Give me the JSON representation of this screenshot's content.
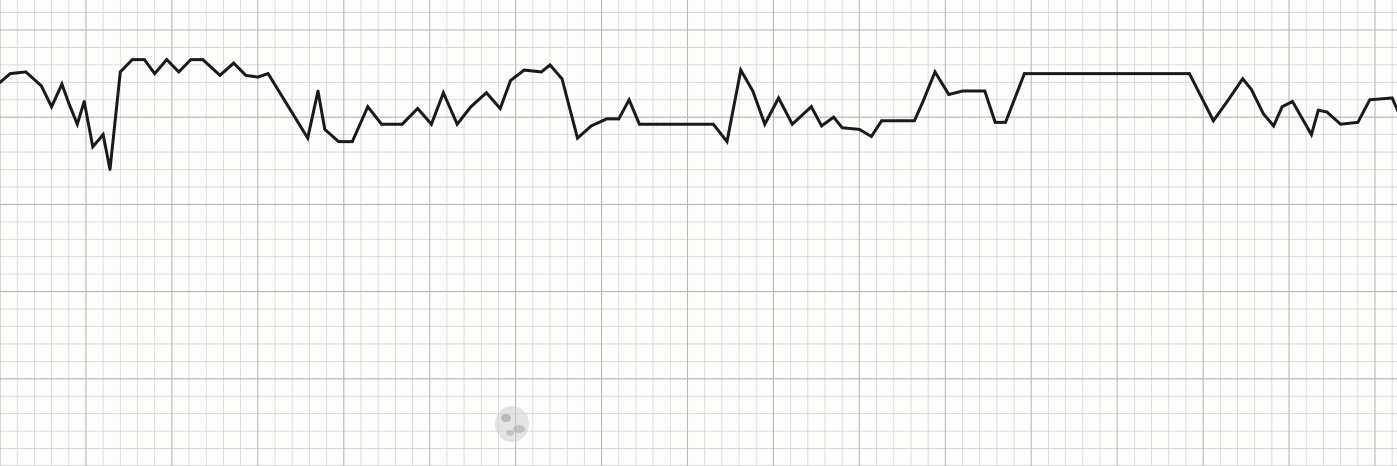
{
  "chart_data": {
    "type": "line",
    "title": "",
    "xlabel": "",
    "ylabel": "",
    "grid": true,
    "legend": "none",
    "xlim": [
      0,
      80
    ],
    "ylim": [
      0,
      25
    ],
    "grid_minor_x": 1,
    "grid_major_x": 5,
    "grid_minor_y": 1,
    "grid_major_y": 5,
    "series": [
      {
        "values": [
          [
            0.0,
            22.0
          ],
          [
            0.6,
            22.5
          ],
          [
            1.5,
            22.6
          ],
          [
            2.4,
            21.8
          ],
          [
            3.0,
            20.6
          ],
          [
            3.6,
            21.9
          ],
          [
            4.0,
            20.8
          ],
          [
            4.5,
            19.6
          ],
          [
            4.9,
            20.9
          ],
          [
            5.4,
            18.3
          ],
          [
            6.0,
            19.0
          ],
          [
            6.4,
            17.0
          ],
          [
            7.0,
            22.6
          ],
          [
            7.7,
            23.3
          ],
          [
            8.4,
            23.3
          ],
          [
            9.0,
            22.5
          ],
          [
            9.7,
            23.3
          ],
          [
            10.4,
            22.6
          ],
          [
            11.1,
            23.3
          ],
          [
            11.8,
            23.3
          ],
          [
            12.8,
            22.4
          ],
          [
            13.6,
            23.1
          ],
          [
            14.3,
            22.4
          ],
          [
            15.0,
            22.3
          ],
          [
            15.6,
            22.5
          ],
          [
            17.9,
            18.8
          ],
          [
            18.5,
            21.5
          ],
          [
            18.9,
            19.3
          ],
          [
            19.7,
            18.6
          ],
          [
            20.5,
            18.6
          ],
          [
            21.4,
            20.6
          ],
          [
            22.2,
            19.6
          ],
          [
            23.4,
            19.6
          ],
          [
            24.3,
            20.5
          ],
          [
            25.1,
            19.6
          ],
          [
            25.8,
            21.4
          ],
          [
            26.6,
            19.6
          ],
          [
            27.4,
            20.6
          ],
          [
            28.3,
            21.4
          ],
          [
            29.1,
            20.5
          ],
          [
            29.7,
            22.1
          ],
          [
            30.5,
            22.7
          ],
          [
            31.5,
            22.6
          ],
          [
            32.0,
            23.0
          ],
          [
            32.7,
            22.2
          ],
          [
            33.6,
            18.8
          ],
          [
            34.4,
            19.5
          ],
          [
            35.3,
            19.9
          ],
          [
            36.0,
            19.9
          ],
          [
            36.6,
            21.0
          ],
          [
            37.2,
            19.6
          ],
          [
            38.2,
            19.6
          ],
          [
            41.5,
            19.6
          ],
          [
            42.3,
            18.6
          ],
          [
            43.1,
            22.7
          ],
          [
            43.8,
            21.5
          ],
          [
            44.5,
            19.6
          ],
          [
            45.3,
            21.1
          ],
          [
            46.1,
            19.6
          ],
          [
            47.2,
            20.6
          ],
          [
            47.8,
            19.5
          ],
          [
            48.5,
            20.0
          ],
          [
            49.0,
            19.4
          ],
          [
            50.0,
            19.3
          ],
          [
            50.7,
            18.9
          ],
          [
            51.3,
            19.8
          ],
          [
            52.4,
            19.8
          ],
          [
            53.2,
            19.8
          ],
          [
            53.7,
            20.9
          ],
          [
            54.4,
            22.6
          ],
          [
            55.2,
            21.3
          ],
          [
            56.0,
            21.5
          ],
          [
            57.3,
            21.5
          ],
          [
            57.9,
            19.7
          ],
          [
            58.5,
            19.7
          ],
          [
            59.6,
            22.5
          ],
          [
            69.2,
            22.5
          ],
          [
            70.6,
            19.8
          ],
          [
            71.4,
            20.9
          ],
          [
            72.3,
            22.2
          ],
          [
            72.8,
            21.6
          ],
          [
            73.5,
            20.2
          ],
          [
            74.1,
            19.5
          ],
          [
            74.6,
            20.6
          ],
          [
            75.2,
            20.9
          ],
          [
            76.3,
            19.0
          ],
          [
            76.7,
            20.4
          ],
          [
            77.2,
            20.3
          ],
          [
            78.0,
            19.6
          ],
          [
            79.0,
            19.7
          ],
          [
            79.7,
            21.0
          ],
          [
            81.0,
            21.1
          ],
          [
            81.4,
            20.2
          ],
          [
            82.2,
            18.6
          ]
        ]
      }
    ]
  }
}
